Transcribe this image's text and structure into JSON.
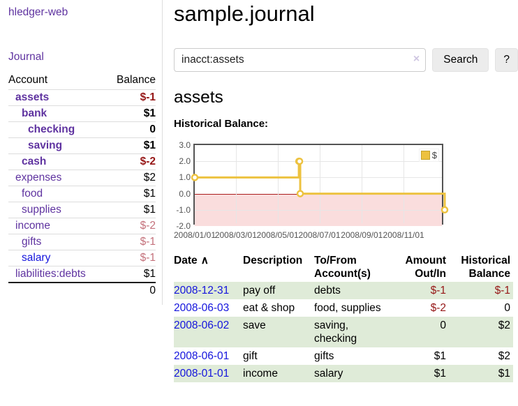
{
  "app": {
    "title": "hledger-web"
  },
  "colors": {
    "link_purple": "#5f33a0",
    "link_blue": "#1414dd",
    "negative_strong": "#961717",
    "negative_dim": "#c4717b",
    "row_stripe_green": "#dfebd8",
    "series_gold": "#edc240"
  },
  "sidebar": {
    "journal_label": "Journal",
    "accounts_table": {
      "headers": {
        "account": "Account",
        "balance": "Balance"
      },
      "rows": [
        {
          "name": "assets",
          "balance": "$-1"
        },
        {
          "name": "bank",
          "balance": "$1"
        },
        {
          "name": "checking",
          "balance": "0"
        },
        {
          "name": "saving",
          "balance": "$1"
        },
        {
          "name": "cash",
          "balance": "$-2"
        },
        {
          "name": "expenses",
          "balance": "$2"
        },
        {
          "name": "food",
          "balance": "$1"
        },
        {
          "name": "supplies",
          "balance": "$1"
        },
        {
          "name": "income",
          "balance": "$-2"
        },
        {
          "name": "gifts",
          "balance": "$-1"
        },
        {
          "name": "salary",
          "balance": "$-1"
        },
        {
          "name": "liabilities:debts",
          "balance": "$1"
        }
      ],
      "total": "0"
    }
  },
  "main": {
    "title": "sample.journal",
    "search": {
      "value": "inacct:assets",
      "clear_icon": "×",
      "button_label": "Search",
      "help_label": "?"
    },
    "account_heading": "assets",
    "chart_heading": "Historical Balance:"
  },
  "chart_data": {
    "type": "line",
    "title": "Historical Balance:",
    "series": [
      {
        "name": "$",
        "color": "#edc240",
        "steps": true,
        "points": [
          [
            "2008-01-01",
            1
          ],
          [
            "2008-06-01",
            2
          ],
          [
            "2008-06-02",
            2
          ],
          [
            "2008-06-03",
            0
          ],
          [
            "2008-12-31",
            -1
          ]
        ]
      }
    ],
    "xrange": [
      "2008-01-01",
      "2008-12-31"
    ],
    "ylim": [
      -2,
      3
    ],
    "yticks": [
      3,
      2,
      1,
      0,
      -1,
      -2
    ],
    "xticks": [
      {
        "label": "2008/01/01",
        "date": "2008-01-01"
      },
      {
        "label": "2008/03/01",
        "date": "2008-03-01"
      },
      {
        "label": "2008/05/01",
        "date": "2008-05-01"
      },
      {
        "label": "2008/07/01",
        "date": "2008-07-01"
      },
      {
        "label": "2008/09/01",
        "date": "2008-09-01"
      },
      {
        "label": "2008/11/01",
        "date": "2008-11-01"
      }
    ],
    "legend_position": "top-right",
    "grid": true,
    "zero_line_color": "#aa1b1b",
    "negative_region_color": "#fadddd",
    "border_color": "#545454"
  },
  "register": {
    "sort_icon": "∧",
    "headers": [
      "Date",
      "Description",
      "To/From\nAccount(s)",
      "Amount\nOut/In",
      "Historical\nBalance"
    ],
    "rows": [
      {
        "date": "2008-12-31",
        "description": "pay off",
        "accounts": "debts",
        "amount": "$-1",
        "balance": "$-1"
      },
      {
        "date": "2008-06-03",
        "description": "eat & shop",
        "accounts": "food, supplies",
        "amount": "$-2",
        "balance": "0"
      },
      {
        "date": "2008-06-02",
        "description": "save",
        "accounts": "saving,\nchecking",
        "amount": "0",
        "balance": "$2"
      },
      {
        "date": "2008-06-01",
        "description": "gift",
        "accounts": "gifts",
        "amount": "$1",
        "balance": "$2"
      },
      {
        "date": "2008-01-01",
        "description": "income",
        "accounts": "salary",
        "amount": "$1",
        "balance": "$1"
      }
    ]
  }
}
